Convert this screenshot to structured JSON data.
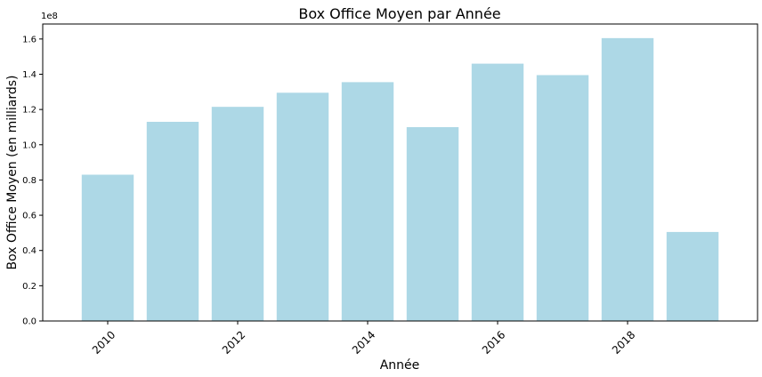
{
  "chart_data": {
    "type": "bar",
    "title": "Box Office Moyen par Année",
    "xlabel": "Année",
    "ylabel": "Box Office Moyen (en milliards)",
    "y_offset_label": "1e8",
    "bar_color": "#add8e6",
    "categories": [
      2010,
      2011,
      2012,
      2013,
      2014,
      2015,
      2016,
      2017,
      2018,
      2019
    ],
    "values": [
      0.83,
      1.13,
      1.215,
      1.295,
      1.355,
      1.1,
      1.46,
      1.395,
      1.605,
      0.505
    ],
    "value_scale": "1e8",
    "xlim": [
      2009.0,
      2020.0
    ],
    "ylim": [
      0,
      1.685
    ],
    "yticks": [
      0.0,
      0.2,
      0.4,
      0.6,
      0.8,
      1.0,
      1.2,
      1.4,
      1.6
    ],
    "ytick_labels": [
      "0.0",
      "0.2",
      "0.4",
      "0.6",
      "0.8",
      "1.0",
      "1.2",
      "1.4",
      "1.6"
    ],
    "xticks": [
      2010,
      2012,
      2014,
      2016,
      2018
    ],
    "xtick_labels": [
      "2010",
      "2012",
      "2014",
      "2016",
      "2018"
    ],
    "grid": false,
    "legend": "none"
  }
}
